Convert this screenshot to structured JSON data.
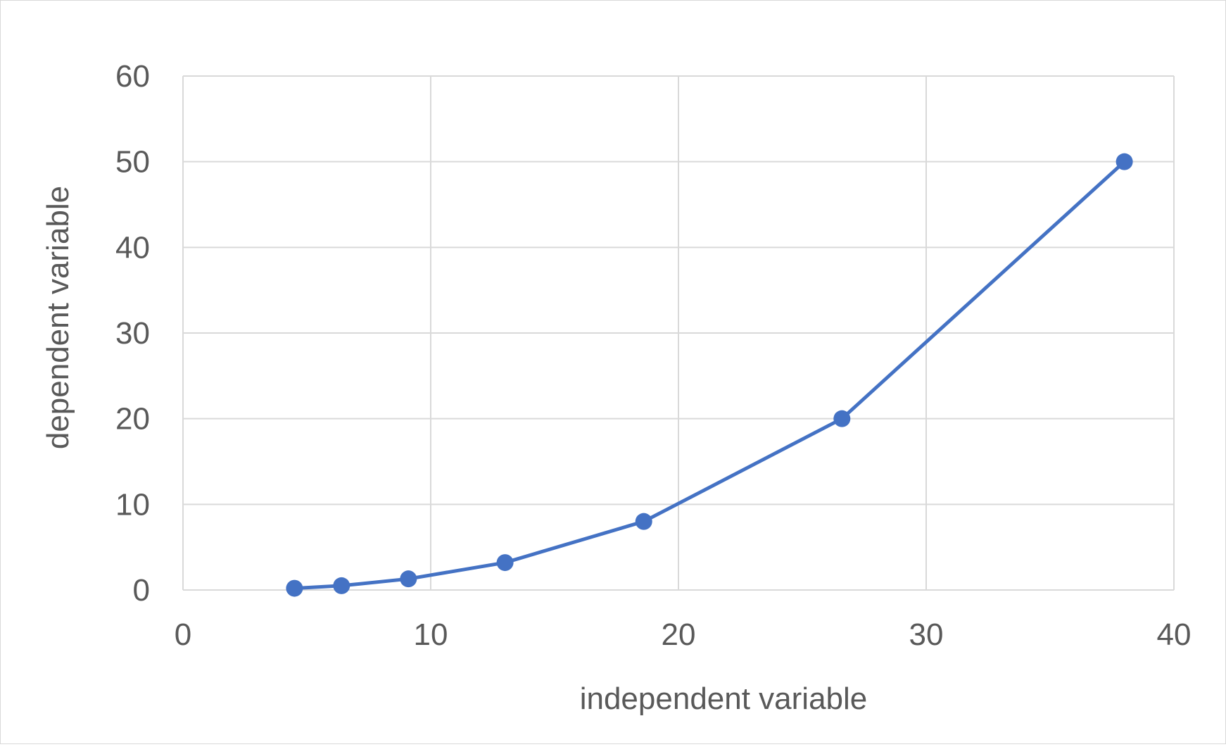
{
  "chart_data": {
    "type": "scatter",
    "mode": "lines+markers",
    "title": "",
    "xlabel": "independent variable",
    "ylabel": "dependent variable",
    "xlim": [
      0,
      40
    ],
    "ylim": [
      0,
      60
    ],
    "xticks": [
      0,
      10,
      20,
      30,
      40
    ],
    "yticks": [
      0,
      10,
      20,
      30,
      40,
      50,
      60
    ],
    "grid": true,
    "legend": "none",
    "series": [
      {
        "color": "#4472c4",
        "x": [
          4.5,
          6.4,
          9.1,
          13.0,
          18.6,
          26.6,
          38.0
        ],
        "y": [
          0.2,
          0.5,
          1.3,
          3.2,
          8.0,
          20.0,
          50.0
        ]
      }
    ]
  }
}
